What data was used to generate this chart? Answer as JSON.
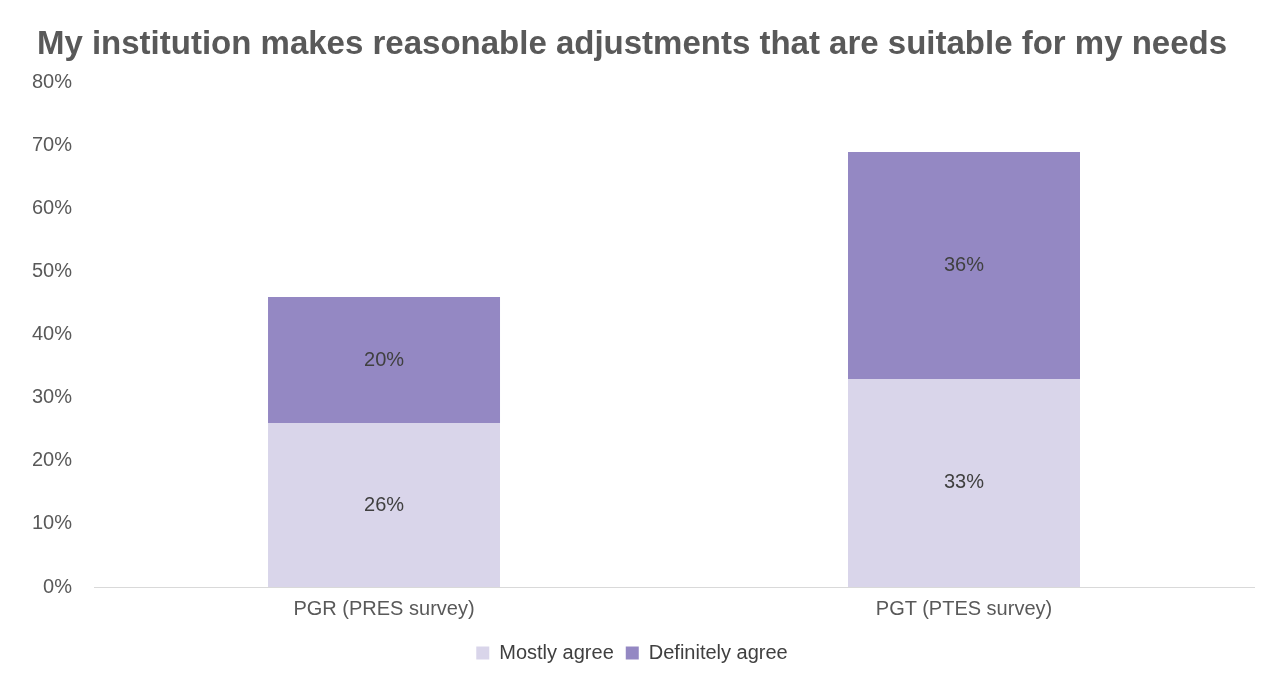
{
  "chart_data": {
    "type": "bar",
    "title": "My institution makes reasonable adjustments that are suitable for my needs",
    "categories": [
      "PGR (PRES survey)",
      "PGT (PTES survey)"
    ],
    "stacked": true,
    "series": [
      {
        "name": "Mostly agree",
        "color": "#d9d5ea",
        "values": [
          26,
          33
        ],
        "value_labels": [
          "26%",
          "33%"
        ]
      },
      {
        "name": "Definitely agree",
        "color": "#9488c3",
        "values": [
          20,
          36
        ],
        "value_labels": [
          "20%",
          "36%"
        ]
      }
    ],
    "ylim": [
      0,
      80
    ],
    "yticks": [
      {
        "value": 0,
        "label": "0%"
      },
      {
        "value": 10,
        "label": "10%"
      },
      {
        "value": 20,
        "label": "20%"
      },
      {
        "value": 30,
        "label": "30%"
      },
      {
        "value": 40,
        "label": "40%"
      },
      {
        "value": 50,
        "label": "50%"
      },
      {
        "value": 60,
        "label": "60%"
      },
      {
        "value": 70,
        "label": "70%"
      },
      {
        "value": 80,
        "label": "80%"
      }
    ],
    "grid": false,
    "legend": "bottom"
  }
}
